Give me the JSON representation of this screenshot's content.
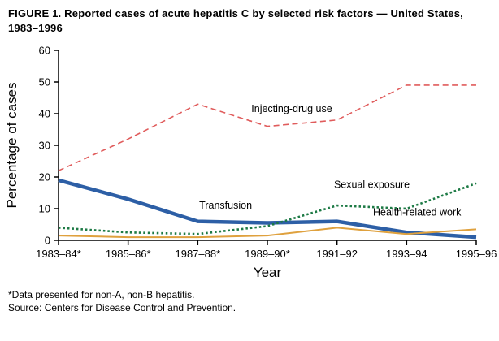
{
  "figure": {
    "title": "FIGURE 1. Reported cases of acute hepatitis C by selected risk factors — United States, 1983–1996",
    "footnote_asterisk": "*Data presented for non-A, non-B hepatitis.",
    "footnote_source": "Source: Centers for Disease Control and Prevention."
  },
  "chart_data": {
    "type": "line",
    "title": "FIGURE 1. Reported cases of acute hepatitis C by selected risk factors — United States, 1983–1996",
    "categories": [
      "1983–84*",
      "1985–86*",
      "1987–88*",
      "1989–90*",
      "1991–92",
      "1993–94",
      "1995–96"
    ],
    "series": [
      {
        "name": "Injecting-drug use",
        "values": [
          22,
          32,
          43,
          36,
          38,
          49,
          49
        ],
        "color": "#e05c5c",
        "style": "dashed",
        "width": 1.6
      },
      {
        "name": "Transfusion",
        "values": [
          19,
          13,
          6,
          5.5,
          6,
          2.5,
          1
        ],
        "color": "#2d5fa6",
        "style": "solid",
        "width": 4.5
      },
      {
        "name": "Sexual exposure",
        "values": [
          4,
          2.5,
          2,
          4.5,
          11,
          10,
          18
        ],
        "color": "#1d7a45",
        "style": "dotted",
        "width": 2.6
      },
      {
        "name": "Health-related work",
        "values": [
          1.5,
          1,
          1,
          1.5,
          4,
          2,
          3.5
        ],
        "color": "#dfa13e",
        "style": "solid",
        "width": 2
      }
    ],
    "annotations": [
      {
        "text": "Injecting-drug use",
        "x": 3.35,
        "y": 40.5
      },
      {
        "text": "Sexual exposure",
        "x": 4.5,
        "y": 16.5
      },
      {
        "text": "Transfusion",
        "x": 2.4,
        "y": 10
      },
      {
        "text": "Health-related work",
        "x": 5.15,
        "y": 7.8
      }
    ],
    "xlabel": "Year",
    "ylabel": "Percentage of cases",
    "ylim": [
      0,
      60
    ],
    "yticks": [
      0,
      10,
      20,
      30,
      40,
      50,
      60
    ],
    "legend": "none",
    "grid": false
  }
}
